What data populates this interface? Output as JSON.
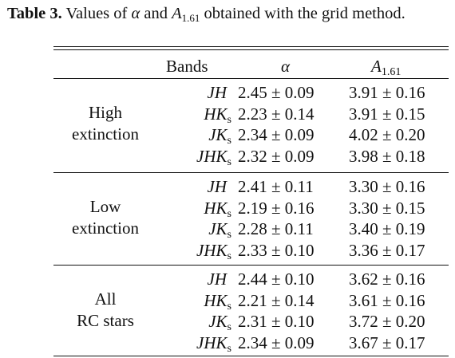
{
  "caption": {
    "label": "Table 3.",
    "text_before": " Values of ",
    "alpha_symbol": "α",
    "text_and": " and ",
    "a_symbol": "A",
    "a_sub": "1.61",
    "text_after": " obtained with the grid method."
  },
  "header": {
    "bands": "Bands",
    "alpha": "α",
    "a_symbol": "A",
    "a_sub": "1.61"
  },
  "groups": [
    {
      "label_line1": "High",
      "label_line2": "extinction",
      "rows": [
        {
          "band": "JH",
          "band_sub": "",
          "alpha": "2.45 ± 0.09",
          "a161": "3.91 ± 0.16"
        },
        {
          "band": "HK",
          "band_sub": "s",
          "alpha": "2.23 ± 0.14",
          "a161": "3.91 ± 0.15"
        },
        {
          "band": "JK",
          "band_sub": "s",
          "alpha": "2.34 ± 0.09",
          "a161": "4.02 ± 0.20"
        },
        {
          "band": "JHK",
          "band_sub": "s",
          "alpha": "2.32 ± 0.09",
          "a161": "3.98 ± 0.18"
        }
      ]
    },
    {
      "label_line1": "Low",
      "label_line2": "extinction",
      "rows": [
        {
          "band": "JH",
          "band_sub": "",
          "alpha": "2.41 ± 0.11",
          "a161": "3.30 ± 0.16"
        },
        {
          "band": "HK",
          "band_sub": "s",
          "alpha": "2.19 ± 0.16",
          "a161": "3.30 ± 0.15"
        },
        {
          "band": "JK",
          "band_sub": "s",
          "alpha": "2.28 ± 0.11",
          "a161": "3.40 ± 0.19"
        },
        {
          "band": "JHK",
          "band_sub": "s",
          "alpha": "2.33 ± 0.10",
          "a161": "3.36 ± 0.17"
        }
      ]
    },
    {
      "label_line1": "All",
      "label_line2": "RC stars",
      "rows": [
        {
          "band": "JH",
          "band_sub": "",
          "alpha": "2.44 ± 0.10",
          "a161": "3.62 ± 0.16"
        },
        {
          "band": "HK",
          "band_sub": "s",
          "alpha": "2.21 ± 0.14",
          "a161": "3.61 ± 0.16"
        },
        {
          "band": "JK",
          "band_sub": "s",
          "alpha": "2.31 ± 0.10",
          "a161": "3.72 ± 0.20"
        },
        {
          "band": "JHK",
          "band_sub": "s",
          "alpha": "2.34 ± 0.09",
          "a161": "3.67 ± 0.17"
        }
      ]
    }
  ]
}
